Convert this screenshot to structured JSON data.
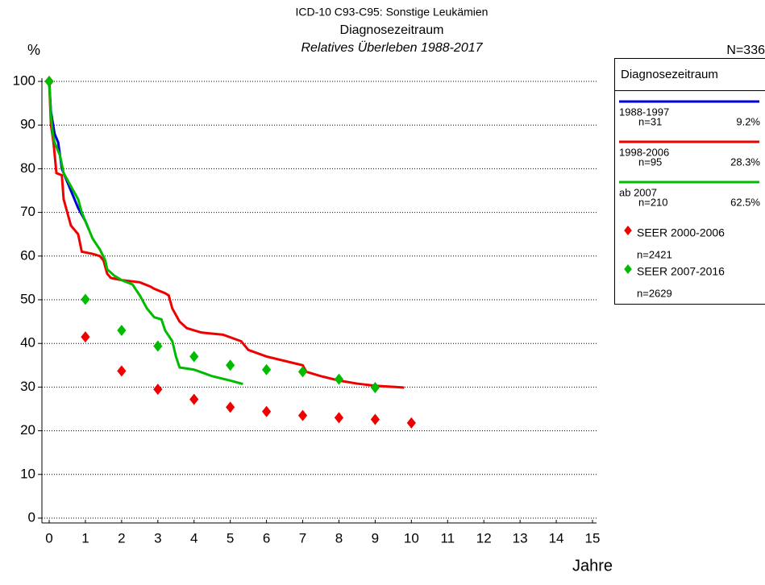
{
  "chart_data": {
    "type": "line",
    "title": "ICD-10 C93-C95: Sonstige Leukämien",
    "subtitle": "Diagnosezeitraum",
    "caption": "Relatives Überleben 1988-2017",
    "y_label": "%",
    "x_label": "Jahre",
    "total_label": "N=336",
    "legend_title": "Diagnosezeitraum",
    "xlim": [
      0,
      15
    ],
    "xticks": [
      0,
      1,
      2,
      3,
      4,
      5,
      6,
      7,
      8,
      9,
      10,
      11,
      12,
      13,
      14,
      15
    ],
    "ylim": [
      0,
      100
    ],
    "yticks": [
      0,
      10,
      20,
      30,
      40,
      50,
      60,
      70,
      80,
      90,
      100
    ],
    "grid": true,
    "series": [
      {
        "name": "1988-1997",
        "n": "n=31",
        "share": "9.2%",
        "type": "line",
        "color": "#0000dd",
        "x": [
          0,
          0.05,
          0.15,
          0.25,
          0.35,
          0.5,
          0.65,
          0.8,
          1.0,
          1.1
        ],
        "values": [
          100,
          93,
          88,
          86,
          80,
          77,
          74,
          71,
          68,
          66
        ]
      },
      {
        "name": "1998-2006",
        "n": "n=95",
        "share": "28.3%",
        "type": "line",
        "color": "#ee0000",
        "x": [
          0,
          0.05,
          0.12,
          0.2,
          0.35,
          0.4,
          0.5,
          0.6,
          0.8,
          0.9,
          1.2,
          1.4,
          1.5,
          1.6,
          1.7,
          2.0,
          2.5,
          2.8,
          2.9,
          3.2,
          3.3,
          3.4,
          3.6,
          3.8,
          4.2,
          4.8,
          5.3,
          5.5,
          6,
          6.5,
          7,
          7.1,
          7.5,
          8,
          8.5,
          9,
          9.6,
          9.8
        ],
        "values": [
          100,
          90,
          86,
          79,
          78.5,
          73,
          70,
          67,
          65,
          61,
          60.5,
          60,
          59,
          56,
          55,
          54.5,
          54,
          53,
          52.5,
          51.5,
          51,
          48,
          45,
          43.5,
          42.5,
          42,
          40.5,
          38.5,
          37,
          36,
          35,
          33.5,
          32.5,
          31.5,
          30.8,
          30.3,
          30,
          29.9
        ]
      },
      {
        "name": "ab 2007",
        "n": "n=210",
        "share": "62.5%",
        "type": "line",
        "color": "#00bb00",
        "x": [
          0,
          0.05,
          0.1,
          0.15,
          0.3,
          0.4,
          0.6,
          0.8,
          0.9,
          1.1,
          1.2,
          1.4,
          1.55,
          1.6,
          1.8,
          2.0,
          2.3,
          2.5,
          2.7,
          2.9,
          3.1,
          3.2,
          3.4,
          3.5,
          3.6,
          4,
          4.5,
          5,
          5.35
        ],
        "values": [
          100,
          92,
          88,
          86,
          83,
          79,
          76,
          73,
          70,
          66,
          64,
          61.5,
          59,
          57,
          55.5,
          54.5,
          53.5,
          51,
          48,
          46,
          45.5,
          43,
          40.5,
          37,
          34.5,
          34,
          32.5,
          31.5,
          30.7
        ]
      },
      {
        "name": "SEER 2000-2006",
        "n": "n=2421",
        "type": "scatter",
        "color": "#ee0000",
        "x": [
          0,
          1,
          2,
          3,
          4,
          5,
          6,
          7,
          8,
          9,
          10
        ],
        "values": [
          100,
          41.5,
          33.7,
          29.5,
          27.2,
          25.4,
          24.4,
          23.5,
          23.0,
          22.6,
          21.8
        ]
      },
      {
        "name": "SEER 2007-2016",
        "n": "n=2629",
        "type": "scatter",
        "color": "#00bb00",
        "x": [
          0,
          1,
          2,
          3,
          4,
          5,
          6,
          7,
          8,
          9
        ],
        "values": [
          100,
          50.1,
          43,
          39.4,
          37,
          35,
          34,
          33.5,
          31.8,
          29.9
        ]
      }
    ]
  }
}
